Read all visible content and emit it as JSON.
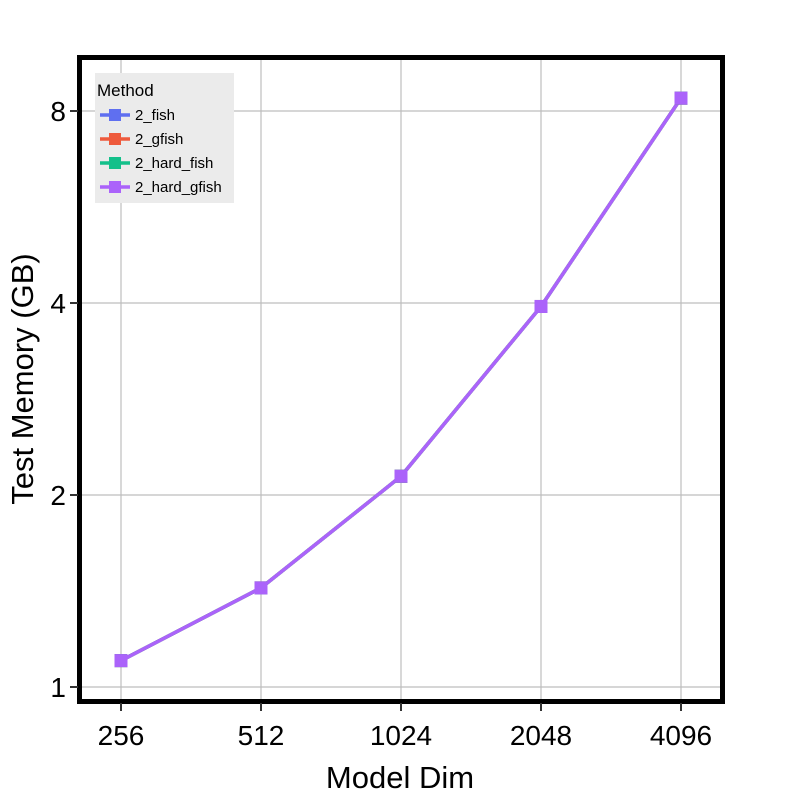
{
  "chart_data": {
    "type": "line",
    "xlabel": "Model Dim",
    "ylabel": "Test Memory (GB)",
    "x": [
      256,
      512,
      1024,
      2048,
      4096
    ],
    "x_scale": "log2",
    "y_scale": "log2",
    "xlim": [
      256,
      4096
    ],
    "ylim": [
      1,
      8
    ],
    "xticks": [
      "256",
      "512",
      "1024",
      "2048",
      "4096"
    ],
    "yticks": [
      1,
      2,
      4,
      8
    ],
    "ytick_labels": [
      "1",
      "2",
      "4",
      "8"
    ],
    "grid": true,
    "legend": {
      "title": "Method",
      "position": "top-left"
    },
    "series": [
      {
        "name": "2_fish",
        "color": "#5f6ff0",
        "values": [
          1.1,
          1.43,
          2.14,
          3.95,
          8.38
        ]
      },
      {
        "name": "2_gfish",
        "color": "#ee5a3c",
        "values": [
          1.1,
          1.43,
          2.14,
          3.95,
          8.38
        ]
      },
      {
        "name": "2_hard_fish",
        "color": "#13c08a",
        "values": [
          1.1,
          1.43,
          2.14,
          3.95,
          8.38
        ]
      },
      {
        "name": "2_hard_gfish",
        "color": "#ab63fa",
        "values": [
          1.1,
          1.43,
          2.14,
          3.95,
          8.38
        ]
      }
    ]
  }
}
